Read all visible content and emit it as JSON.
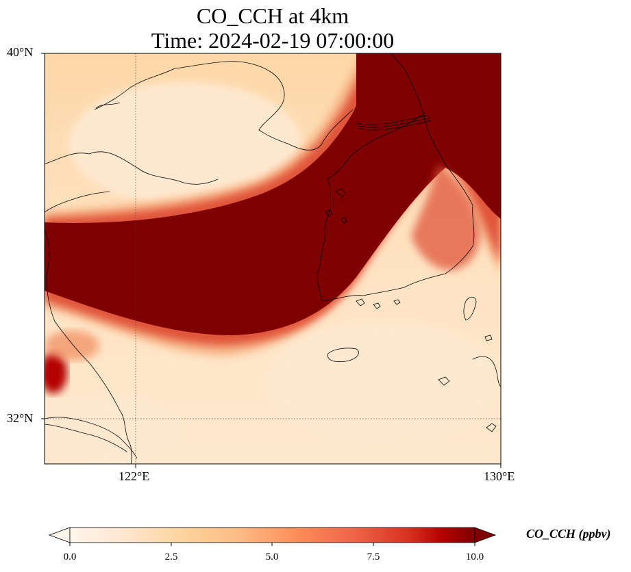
{
  "header": {
    "title_line1": "CO_CCH at 4km",
    "title_line2": "Time: 2024-02-19 07:00:00"
  },
  "map": {
    "lat_ticks": [
      {
        "value": 40,
        "label": "40°N"
      },
      {
        "value": 32,
        "label": "32°N"
      }
    ],
    "lon_ticks": [
      {
        "value": 122,
        "label": "122°E"
      },
      {
        "value": 130,
        "label": "130°E"
      }
    ],
    "extent": {
      "lon_min": 120,
      "lon_max": 130,
      "lat_min": 31,
      "lat_max": 40
    },
    "gridlines": true
  },
  "colorbar": {
    "label": "CO_CCH (ppbv)",
    "ticks": [
      "0.0",
      "2.5",
      "5.0",
      "7.5",
      "10.0"
    ],
    "min": 0,
    "max": 10,
    "extend": "both",
    "colormap": [
      "#fff5eb",
      "#fdd49e",
      "#fdbb84",
      "#fc8d59",
      "#ef6548",
      "#d7301f",
      "#b30000",
      "#7f0000"
    ]
  },
  "colors": {
    "high": "#7f0000",
    "mid": "#d7301f",
    "low": "#fdd9ad",
    "background_low": "#fee6c8"
  }
}
